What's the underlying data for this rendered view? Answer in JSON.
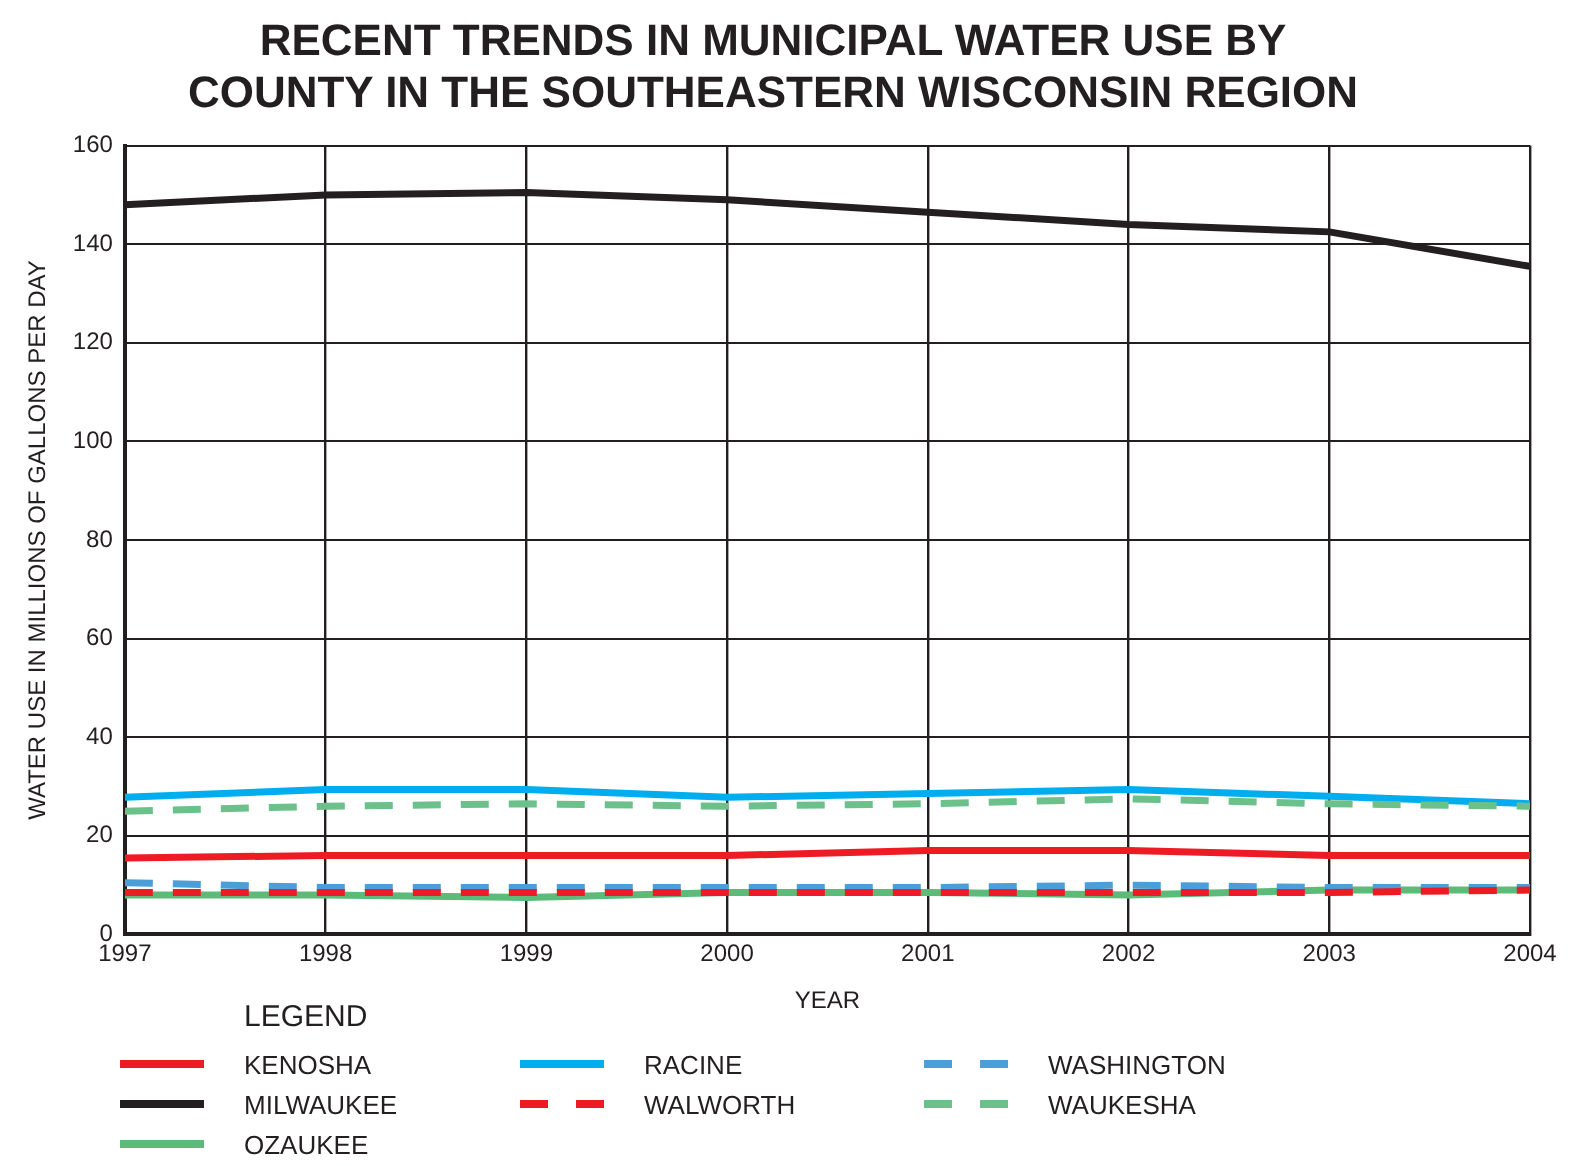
{
  "chart_data": {
    "type": "line",
    "title": [
      "RECENT TRENDS IN MUNICIPAL WATER USE BY",
      "COUNTY IN THE SOUTHEASTERN WISCONSIN REGION"
    ],
    "xlabel": "YEAR",
    "ylabel": "WATER USE IN MILLIONS OF GALLONS PER DAY",
    "legend_title": "LEGEND",
    "x": [
      1997,
      1998,
      1999,
      2000,
      2001,
      2002,
      2003,
      2004
    ],
    "xlim": [
      1997,
      2004
    ],
    "xticks": [
      1997,
      1998,
      1999,
      2000,
      2001,
      2002,
      2003,
      2004
    ],
    "ylim": [
      0,
      160
    ],
    "yticks": [
      0,
      20,
      40,
      60,
      80,
      100,
      120,
      140,
      160
    ],
    "grid": true,
    "legend": "bottom",
    "marker": "none",
    "series": [
      {
        "name": "KENOSHA",
        "color": "#ed1c24",
        "line_style": "solid",
        "values": [
          15.5,
          16,
          16,
          16,
          17,
          17,
          16,
          16
        ]
      },
      {
        "name": "MILWAUKEE",
        "color": "#231f20",
        "line_style": "solid",
        "values": [
          148,
          150,
          150.5,
          149,
          146.5,
          144,
          142.5,
          135.5
        ]
      },
      {
        "name": "OZAUKEE",
        "color": "#5dbb7a",
        "line_style": "solid",
        "values": [
          8,
          8,
          7.5,
          8.5,
          8.5,
          8,
          9,
          9
        ]
      },
      {
        "name": "RACINE",
        "color": "#00aeef",
        "line_style": "solid",
        "values": [
          27.8,
          29.4,
          29.4,
          27.8,
          28.6,
          29.4,
          28,
          26.5
        ]
      },
      {
        "name": "WALWORTH",
        "color": "#ed1c24",
        "line_style": "dashed",
        "values": [
          8.5,
          8.5,
          8.5,
          8.5,
          8.5,
          8.5,
          8.5,
          9
        ]
      },
      {
        "name": "WASHINGTON",
        "color": "#4a9fd8",
        "line_style": "dashed",
        "values": [
          10.5,
          9.5,
          9.5,
          9.5,
          9.5,
          10,
          9.5,
          9.5
        ]
      },
      {
        "name": "WAUKESHA",
        "color": "#6cc08a",
        "line_style": "dashed",
        "values": [
          25,
          26,
          26.5,
          26,
          26.5,
          27.5,
          26.5,
          26
        ]
      }
    ]
  }
}
